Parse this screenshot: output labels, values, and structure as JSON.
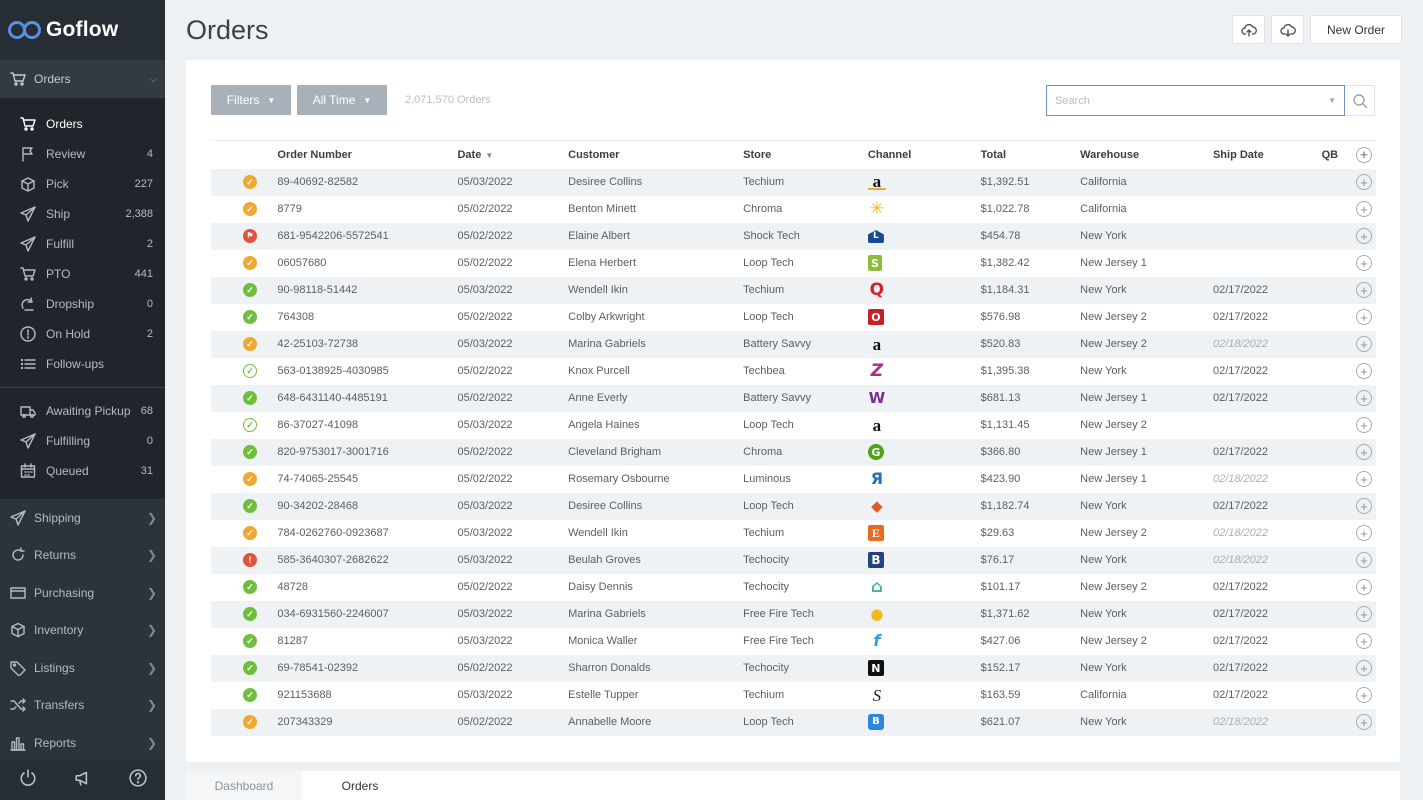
{
  "brand": {
    "name": "Goflow"
  },
  "sidebar": {
    "section": {
      "label": "Orders"
    },
    "items": [
      {
        "label": "Orders",
        "count": "",
        "icon": "cart-icon",
        "active": true
      },
      {
        "label": "Review",
        "count": "4",
        "icon": "flag-icon"
      },
      {
        "label": "Pick",
        "count": "227",
        "icon": "box-icon"
      },
      {
        "label": "Ship",
        "count": "2,388",
        "icon": "send-icon"
      },
      {
        "label": "Fulfill",
        "count": "2",
        "icon": "send-icon"
      },
      {
        "label": "PTO",
        "count": "441",
        "icon": "cart-icon"
      },
      {
        "label": "Dropship",
        "count": "0",
        "icon": "dropship-icon"
      },
      {
        "label": "On Hold",
        "count": "2",
        "icon": "alert-icon"
      },
      {
        "label": "Follow-ups",
        "count": "",
        "icon": "list-icon"
      }
    ],
    "items2": [
      {
        "label": "Awaiting Pickup",
        "count": "68",
        "icon": "truck-icon"
      },
      {
        "label": "Fulfilling",
        "count": "0",
        "icon": "send-icon"
      },
      {
        "label": "Queued",
        "count": "31",
        "icon": "calendar-icon"
      }
    ],
    "groups": [
      {
        "label": "Shipping",
        "icon": "send-icon"
      },
      {
        "label": "Returns",
        "icon": "return-icon"
      },
      {
        "label": "Purchasing",
        "icon": "card-icon"
      },
      {
        "label": "Inventory",
        "icon": "cube-icon"
      },
      {
        "label": "Listings",
        "icon": "tag-icon"
      },
      {
        "label": "Transfers",
        "icon": "shuffle-icon"
      },
      {
        "label": "Reports",
        "icon": "bar-chart-icon"
      }
    ]
  },
  "header": {
    "title": "Orders",
    "new_order": "New Order"
  },
  "toolbar": {
    "filters": "Filters",
    "time": "All Time",
    "count": "2,071,570 Orders",
    "search_placeholder": "Search"
  },
  "table": {
    "columns": [
      "Order Number",
      "Date",
      "Customer",
      "Store",
      "Channel",
      "Total",
      "Warehouse",
      "Ship Date",
      "QB"
    ],
    "rows": [
      {
        "status": "orange",
        "order": "89-40692-82582",
        "date": "05/03/2022",
        "customer": "Desiree Collins",
        "store": "Techium",
        "channel": "amazon",
        "total": "$1,392.51",
        "warehouse": "California",
        "ship": "",
        "pending": false
      },
      {
        "status": "orange",
        "order": "8779",
        "date": "05/02/2022",
        "customer": "Benton Minett",
        "store": "Chroma",
        "channel": "walmart",
        "total": "$1,022.78",
        "warehouse": "California",
        "ship": "",
        "pending": false
      },
      {
        "status": "flag",
        "order": "681-9542206-5572541",
        "date": "05/02/2022",
        "customer": "Elaine Albert",
        "store": "Shock Tech",
        "channel": "lowes",
        "total": "$454.78",
        "warehouse": "New York",
        "ship": "",
        "pending": false
      },
      {
        "status": "orange",
        "order": "06057680",
        "date": "05/02/2022",
        "customer": "Elena Herbert",
        "store": "Loop Tech",
        "channel": "shopify",
        "total": "$1,382.42",
        "warehouse": "New Jersey 1",
        "ship": "",
        "pending": false
      },
      {
        "status": "green",
        "order": "90-98118-51442",
        "date": "05/03/2022",
        "customer": "Wendell Ikin",
        "store": "Techium",
        "channel": "qvc",
        "total": "$1,184.31",
        "warehouse": "New York",
        "ship": "02/17/2022",
        "pending": false
      },
      {
        "status": "green",
        "order": "764308",
        "date": "05/02/2022",
        "customer": "Colby Arkwright",
        "store": "Loop Tech",
        "channel": "overstock",
        "total": "$576.98",
        "warehouse": "New Jersey 2",
        "ship": "02/17/2022",
        "pending": false
      },
      {
        "status": "orange",
        "order": "42-25103-72738",
        "date": "05/03/2022",
        "customer": "Marina Gabriels",
        "store": "Battery Savvy",
        "channel": "amazon-ca",
        "total": "$520.83",
        "warehouse": "New Jersey 2",
        "ship": "02/18/2022",
        "pending": true
      },
      {
        "status": "outline",
        "order": "563-0138925-4030985",
        "date": "05/02/2022",
        "customer": "Knox Purcell",
        "store": "Techbea",
        "channel": "zulily",
        "total": "$1,395.38",
        "warehouse": "New York",
        "ship": "02/17/2022",
        "pending": false
      },
      {
        "status": "green",
        "order": "648-6431140-4485191",
        "date": "05/02/2022",
        "customer": "Anne Everly",
        "store": "Battery Savvy",
        "channel": "wayfair",
        "total": "$681.13",
        "warehouse": "New Jersey 1",
        "ship": "02/17/2022",
        "pending": false
      },
      {
        "status": "outline",
        "order": "86-37027-41098",
        "date": "05/03/2022",
        "customer": "Angela Haines",
        "store": "Loop Tech",
        "channel": "amazon-ca",
        "total": "$1,131.45",
        "warehouse": "New Jersey 2",
        "ship": "",
        "pending": false
      },
      {
        "status": "green",
        "order": "820-9753017-3001716",
        "date": "05/02/2022",
        "customer": "Cleveland Brigham",
        "store": "Chroma",
        "channel": "groupon",
        "total": "$366.80",
        "warehouse": "New Jersey 1",
        "ship": "02/17/2022",
        "pending": false
      },
      {
        "status": "orange",
        "order": "74-74065-25545",
        "date": "05/02/2022",
        "customer": "Rosemary Osbourne",
        "store": "Luminous",
        "channel": "yandex",
        "total": "$423.90",
        "warehouse": "New Jersey 1",
        "ship": "02/18/2022",
        "pending": true
      },
      {
        "status": "green",
        "order": "90-34202-28468",
        "date": "05/03/2022",
        "customer": "Desiree Collins",
        "store": "Loop Tech",
        "channel": "cube",
        "total": "$1,182.74",
        "warehouse": "New York",
        "ship": "02/17/2022",
        "pending": false
      },
      {
        "status": "orange",
        "order": "784-0262760-0923687",
        "date": "05/03/2022",
        "customer": "Wendell Ikin",
        "store": "Techium",
        "channel": "etsy",
        "total": "$29.63",
        "warehouse": "New Jersey 2",
        "ship": "02/18/2022",
        "pending": true
      },
      {
        "status": "red",
        "order": "585-3640307-2682622",
        "date": "05/03/2022",
        "customer": "Beulah Groves",
        "store": "Techocity",
        "channel": "bonanza",
        "total": "$76.17",
        "warehouse": "New York",
        "ship": "02/18/2022",
        "pending": true
      },
      {
        "status": "green",
        "order": "48728",
        "date": "05/02/2022",
        "customer": "Daisy Dennis",
        "store": "Techocity",
        "channel": "houzz",
        "total": "$101.17",
        "warehouse": "New Jersey 2",
        "ship": "02/17/2022",
        "pending": false
      },
      {
        "status": "green",
        "order": "034-6931560-2246007",
        "date": "05/03/2022",
        "customer": "Marina Gabriels",
        "store": "Free Fire Tech",
        "channel": "orange",
        "total": "$1,371.62",
        "warehouse": "New York",
        "ship": "02/17/2022",
        "pending": false
      },
      {
        "status": "green",
        "order": "81287",
        "date": "05/03/2022",
        "customer": "Monica Waller",
        "store": "Free Fire Tech",
        "channel": "fiverr",
        "total": "$427.06",
        "warehouse": "New Jersey 2",
        "ship": "02/17/2022",
        "pending": false
      },
      {
        "status": "green",
        "order": "69-78541-02392",
        "date": "05/02/2022",
        "customer": "Sharron Donalds",
        "store": "Techocity",
        "channel": "newegg",
        "total": "$152.17",
        "warehouse": "New York",
        "ship": "02/17/2022",
        "pending": false
      },
      {
        "status": "green",
        "order": "921153688",
        "date": "05/03/2022",
        "customer": "Estelle Tupper",
        "store": "Techium",
        "channel": "script",
        "total": "$163.59",
        "warehouse": "California",
        "ship": "02/17/2022",
        "pending": false
      },
      {
        "status": "orange",
        "order": "207343329",
        "date": "05/02/2022",
        "customer": "Annabelle Moore",
        "store": "Loop Tech",
        "channel": "blue",
        "total": "$621.07",
        "warehouse": "New York",
        "ship": "02/18/2022",
        "pending": true
      }
    ]
  },
  "tabs": {
    "dashboard": "Dashboard",
    "orders": "Orders"
  },
  "colors": {
    "sidebar": "#2b333b",
    "accent": "#5a8ee0",
    "green": "#6fbf3f",
    "orange": "#f2a830",
    "red": "#e2513a"
  }
}
